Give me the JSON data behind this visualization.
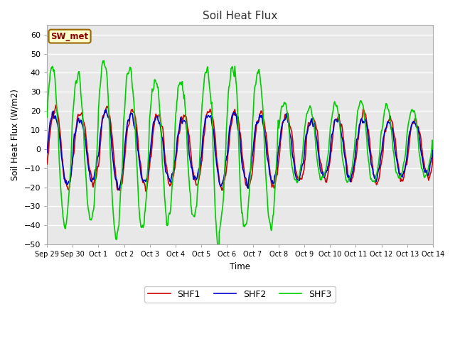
{
  "title": "Soil Heat Flux",
  "xlabel": "Time",
  "ylabel": "Soil Heat Flux (W/m2)",
  "ylim": [
    -50,
    65
  ],
  "yticks": [
    -50,
    -40,
    -30,
    -20,
    -10,
    0,
    10,
    20,
    30,
    40,
    50,
    60
  ],
  "fig_bg_color": "#ffffff",
  "plot_bg_color": "#e8e8e8",
  "line_colors": {
    "SHF1": "#cc0000",
    "SHF2": "#0000cc",
    "SHF3": "#00cc00"
  },
  "line_width": 1.2,
  "annotation_text": "SW_met",
  "annotation_bg": "#ffffcc",
  "annotation_border": "#996600",
  "annotation_text_color": "#8b0000",
  "xtick_labels": [
    "Sep 29",
    "Sep 30",
    "Oct 1",
    "Oct 2",
    "Oct 3",
    "Oct 4",
    "Oct 5",
    "Oct 6",
    "Oct 7",
    "Oct 8",
    "Oct 9",
    "Oct 10",
    "Oct 11",
    "Oct 12",
    "Oct 13",
    "Oct 14"
  ],
  "grid_color": "#ffffff",
  "grid_linewidth": 1.0,
  "figsize": [
    6.4,
    4.8
  ],
  "dpi": 100
}
